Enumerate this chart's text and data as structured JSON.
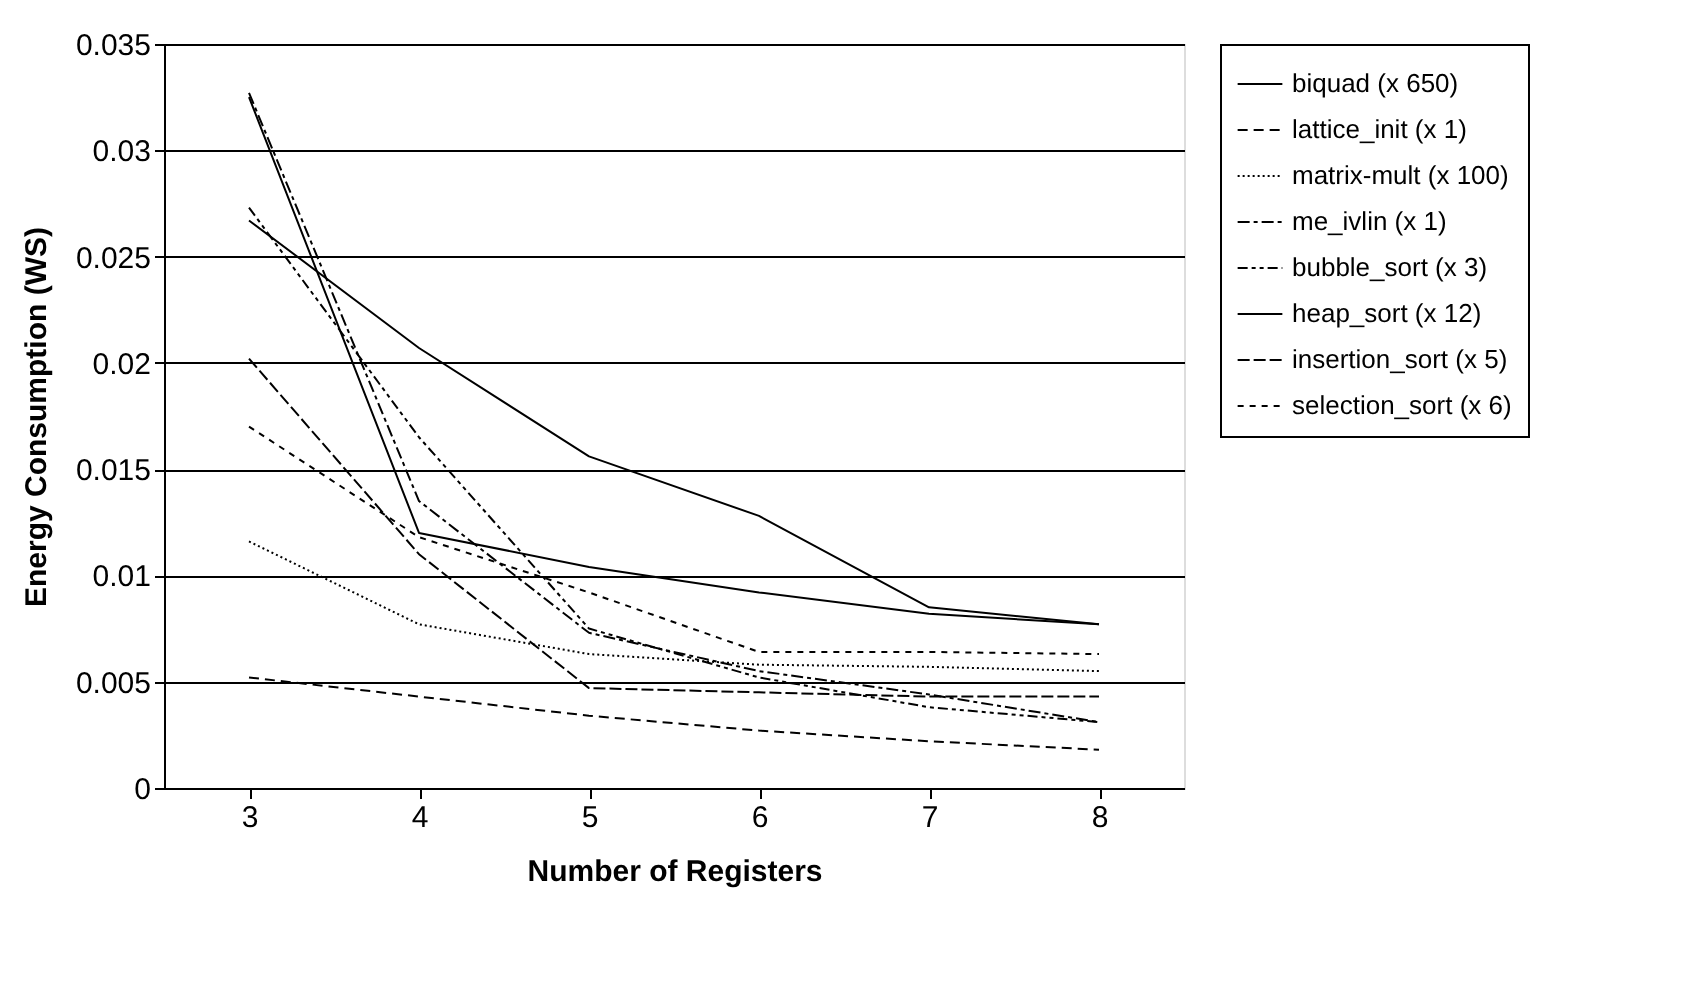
{
  "chart_data": {
    "type": "line",
    "xlabel": "Number of Registers",
    "ylabel": "Energy Consumption (WS)",
    "x": [
      3,
      4,
      5,
      6,
      7,
      8
    ],
    "xlim": [
      2.5,
      8.5
    ],
    "xticks": [
      3,
      4,
      5,
      6,
      7,
      8
    ],
    "ylim": [
      0,
      0.035
    ],
    "yticks": [
      0,
      0.005,
      0.01,
      0.015,
      0.02,
      0.025,
      0.03,
      0.035
    ],
    "grid": "y",
    "legend": "right",
    "marker": "none",
    "series": [
      {
        "name": "biquad (x 650)",
        "color": "#000000",
        "line_style": "solid",
        "values": [
          0.0325,
          0.012,
          0.0104,
          0.0092,
          0.0082,
          0.0077
        ]
      },
      {
        "name": "lattice_init (x 1)",
        "color": "#000000",
        "line_style": "dashed",
        "values": [
          0.0052,
          0.0043,
          0.0034,
          0.0027,
          0.0022,
          0.0018
        ]
      },
      {
        "name": "matrix-mult (x 100)",
        "color": "#000000",
        "line_style": "dotted",
        "values": [
          0.0116,
          0.0077,
          0.0063,
          0.0058,
          0.0057,
          0.0055
        ]
      },
      {
        "name": "me_ivlin (x 1)",
        "color": "#000000",
        "line_style": "dashed",
        "values": [
          0.0327,
          0.0135,
          0.0073,
          0.0055,
          0.0044,
          0.0031
        ]
      },
      {
        "name": "bubble_sort (x 3)",
        "color": "#000000",
        "line_style": "dashed",
        "values": [
          0.0273,
          0.0165,
          0.0075,
          0.0052,
          0.0038,
          0.0031
        ]
      },
      {
        "name": "heap_sort (x 12)",
        "color": "#000000",
        "line_style": "solid",
        "values": [
          0.0267,
          0.0207,
          0.0156,
          0.0128,
          0.0085,
          0.0077
        ]
      },
      {
        "name": "insertion_sort (x 5)",
        "color": "#000000",
        "line_style": "dashed",
        "values": [
          0.0202,
          0.011,
          0.0047,
          0.0045,
          0.0043,
          0.0043
        ]
      },
      {
        "name": "selection_sort (x 6)",
        "color": "#000000",
        "line_style": "dotted",
        "values": [
          0.017,
          0.0118,
          0.0092,
          0.0064,
          0.0064,
          0.0063
        ]
      }
    ]
  }
}
